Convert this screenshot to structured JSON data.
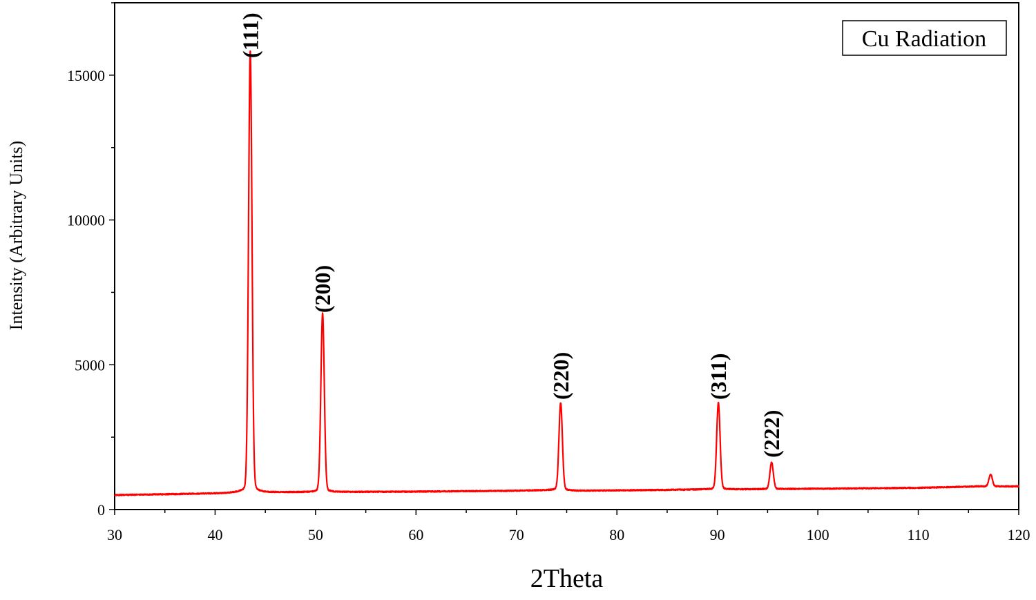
{
  "chart_data": {
    "type": "line",
    "title": "",
    "xlabel": "2Theta",
    "ylabel": "Intensity (Arbitrary Units)",
    "xlim": [
      30,
      120
    ],
    "ylim": [
      0,
      17500
    ],
    "x_ticks": [
      30,
      40,
      50,
      60,
      70,
      80,
      90,
      100,
      110,
      120
    ],
    "x_tick_labels": [
      "30",
      "40",
      "50",
      "60",
      "70",
      "80",
      "90",
      "100",
      "110",
      "120"
    ],
    "y_ticks": [
      0,
      5000,
      10000,
      15000
    ],
    "y_tick_labels": [
      "0",
      "5000",
      "10000",
      "15000"
    ],
    "legend": {
      "text": "Cu Radiation",
      "placement": "top-right"
    },
    "line_color": "#ff0000",
    "series": [
      {
        "baseline": [
          [
            30,
            500
          ],
          [
            40,
            560
          ],
          [
            42.5,
            600
          ],
          [
            60,
            620
          ],
          [
            70,
            650
          ],
          [
            74,
            680
          ],
          [
            76,
            650
          ],
          [
            85,
            680
          ],
          [
            89,
            700
          ],
          [
            92,
            700
          ],
          [
            100,
            720
          ],
          [
            110,
            750
          ],
          [
            116,
            800
          ],
          [
            120,
            800
          ]
        ],
        "peaks": [
          {
            "x": 43.5,
            "y": 15400,
            "label": "(111)"
          },
          {
            "x": 50.7,
            "y": 6600,
            "label": "(200)"
          },
          {
            "x": 74.4,
            "y": 3600,
            "label": "(220)"
          },
          {
            "x": 90.1,
            "y": 3600,
            "label": "(311)"
          },
          {
            "x": 95.4,
            "y": 1600,
            "label": "(222)"
          },
          {
            "x": 117.2,
            "y": 1200,
            "label": ""
          }
        ]
      }
    ]
  }
}
